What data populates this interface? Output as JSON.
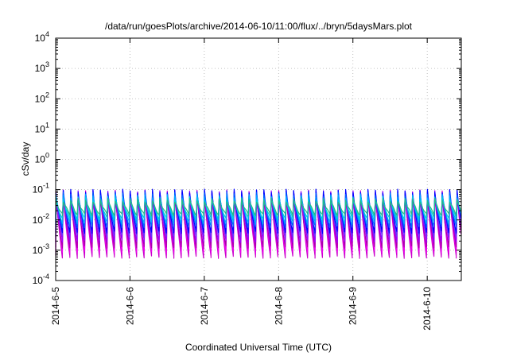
{
  "chart_data": {
    "type": "line",
    "title": "/data/run/goesPlots/archive/2014-06-10/11:00/flux/../bryn/5daysMars.plot",
    "xlabel": "Coordinated Universal Time (UTC)",
    "ylabel": "cSv/day",
    "y_scale": "log",
    "ylim": [
      0.0001,
      10000
    ],
    "y_ticks": [
      {
        "value": 0.0001,
        "base": "10",
        "exp": "-4"
      },
      {
        "value": 0.001,
        "base": "10",
        "exp": "-3"
      },
      {
        "value": 0.01,
        "base": "10",
        "exp": "-2"
      },
      {
        "value": 0.1,
        "base": "10",
        "exp": "-1"
      },
      {
        "value": 1,
        "base": "10",
        "exp": "0"
      },
      {
        "value": 10,
        "base": "10",
        "exp": "1"
      },
      {
        "value": 100,
        "base": "10",
        "exp": "2"
      },
      {
        "value": 1000,
        "base": "10",
        "exp": "3"
      },
      {
        "value": 10000,
        "base": "10",
        "exp": "4"
      }
    ],
    "x_ticks": [
      "2014-6-5",
      "2014-6-6",
      "2014-6-7",
      "2014-6-8",
      "2014-6-9",
      "2014-6-10"
    ],
    "xlim": [
      "2014-06-05 00:00",
      "2014-06-10 11:00"
    ],
    "grid": true,
    "legend": "none",
    "oscillation_periods_per_day": 10,
    "series": [
      {
        "color": "#cc00cc",
        "peak": 0.085,
        "trough": 0.0006
      },
      {
        "color": "#ee00ee",
        "peak": 0.07,
        "trough": 0.0009
      },
      {
        "color": "#aa00aa",
        "peak": 0.06,
        "trough": 0.0013
      },
      {
        "color": "#9900ff",
        "peak": 0.08,
        "trough": 0.002
      },
      {
        "color": "#6633ff",
        "peak": 0.075,
        "trough": 0.003
      },
      {
        "color": "#0000ff",
        "peak": 0.09,
        "trough": 0.004
      },
      {
        "color": "#0066ff",
        "peak": 0.07,
        "trough": 0.006
      },
      {
        "color": "#00aaff",
        "peak": 0.06,
        "trough": 0.008
      },
      {
        "color": "#00ccdd",
        "peak": 0.05,
        "trough": 0.011
      },
      {
        "color": "#22bb88",
        "peak": 0.045,
        "trough": 0.015
      }
    ]
  }
}
